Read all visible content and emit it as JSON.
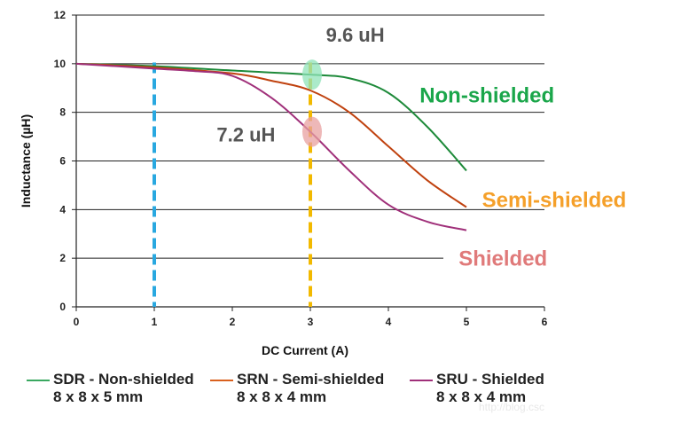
{
  "chart_data": {
    "type": "line",
    "xlabel": "DC Current (A)",
    "ylabel": "Inductance (µH)",
    "xlim": [
      0,
      6
    ],
    "ylim": [
      0,
      12
    ],
    "xticks": [
      "0",
      "1",
      "2",
      "3",
      "4",
      "5",
      "6"
    ],
    "yticks": [
      "0",
      "2",
      "4",
      "6",
      "8",
      "10",
      "12"
    ],
    "grid": "horizontal",
    "series": [
      {
        "name": "SDR - Non-shielded",
        "dimensions": "8 x 8 x 5 mm",
        "color": "#1e8a3a",
        "points": [
          [
            0,
            10.0
          ],
          [
            1,
            9.9
          ],
          [
            2,
            9.72
          ],
          [
            3,
            9.55
          ],
          [
            3.5,
            9.4
          ],
          [
            4,
            8.8
          ],
          [
            4.5,
            7.4
          ],
          [
            5,
            5.6
          ]
        ]
      },
      {
        "name": "SRN - Semi-shielded",
        "dimensions": "8 x 8 x 4 mm",
        "color": "#c0420f",
        "points": [
          [
            0,
            10.0
          ],
          [
            1,
            9.85
          ],
          [
            2,
            9.6
          ],
          [
            2.5,
            9.3
          ],
          [
            3,
            8.9
          ],
          [
            3.5,
            8.0
          ],
          [
            4,
            6.6
          ],
          [
            4.5,
            5.2
          ],
          [
            5,
            4.1
          ]
        ]
      },
      {
        "name": "SRU - Shielded",
        "dimensions": "8 x 8 x 4 mm",
        "color": "#a0307a",
        "points": [
          [
            0,
            10.0
          ],
          [
            1,
            9.8
          ],
          [
            1.5,
            9.7
          ],
          [
            2,
            9.5
          ],
          [
            2.5,
            8.6
          ],
          [
            3,
            7.2
          ],
          [
            3.5,
            5.6
          ],
          [
            4,
            4.2
          ],
          [
            4.5,
            3.5
          ],
          [
            5,
            3.15
          ]
        ]
      }
    ],
    "reference_lines": [
      {
        "x": 1,
        "color": "#29a8e0"
      },
      {
        "x": 3,
        "color": "#f2b900"
      }
    ],
    "highlights": [
      {
        "x": 3,
        "y": 9.55,
        "color": "#8fe3b8"
      },
      {
        "x": 3,
        "y": 7.2,
        "color": "#e8a0a0"
      }
    ],
    "annotations": [
      {
        "text": "9.6 uH",
        "color": "#555555",
        "x": 3.2,
        "y": 10.9,
        "size": 22
      },
      {
        "text": "7.2 uH",
        "color": "#555555",
        "x": 1.8,
        "y": 6.8,
        "size": 22
      },
      {
        "text": "Non-shielded",
        "color": "#1aa64a",
        "x": 4.4,
        "y": 8.4,
        "size": 24
      },
      {
        "text": "Semi-shielded",
        "color": "#f5a02a",
        "x": 5.2,
        "y": 4.1,
        "size": 24
      },
      {
        "text": "Shielded",
        "color": "#e07a7a",
        "x": 4.9,
        "y": 1.7,
        "size": 24
      }
    ]
  },
  "watermark": "http://blog.csc"
}
